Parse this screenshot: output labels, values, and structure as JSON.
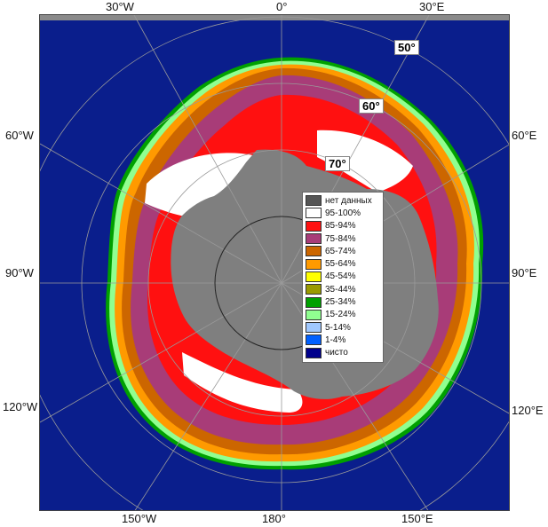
{
  "map": {
    "lon_labels": {
      "top_30w": "30°W",
      "top_0": "0°",
      "top_30e": "30°E",
      "left_60w": "60°W",
      "left_90w": "90°W",
      "left_120w": "120°W",
      "right_60e": "60°E",
      "right_90e": "90°E",
      "right_120e": "120°E",
      "bottom_150w": "150°W",
      "bottom_180": "180°",
      "bottom_150e": "150°E"
    },
    "lat_labels": {
      "lat50": "50°",
      "lat60": "60°",
      "lat70": "70°"
    },
    "colors": {
      "ocean": "#0a1e8c",
      "land": "#7f7f7f",
      "nodata": "#555555",
      "c95": "#ffffff",
      "c85": "#ff1010",
      "c75": "#a83c78",
      "c65": "#cc6600",
      "c55": "#ff9a00",
      "c45": "#ffff00",
      "c35": "#9a9a00",
      "c25": "#00a000",
      "c15": "#90ff90",
      "c5": "#a0c8ff",
      "c1": "#0060ff",
      "clear": "#00008c"
    }
  },
  "legend": [
    {
      "label": "нет данных",
      "color": "#555555"
    },
    {
      "label": "95-100%",
      "color": "#ffffff"
    },
    {
      "label": "85-94%",
      "color": "#ff1010"
    },
    {
      "label": "75-84%",
      "color": "#a83c78"
    },
    {
      "label": "65-74%",
      "color": "#cc6600"
    },
    {
      "label": "55-64%",
      "color": "#ff9a00"
    },
    {
      "label": "45-54%",
      "color": "#ffff00"
    },
    {
      "label": "35-44%",
      "color": "#9a9a00"
    },
    {
      "label": "25-34%",
      "color": "#00a000"
    },
    {
      "label": "15-24%",
      "color": "#90ff90"
    },
    {
      "label": "5-14%",
      "color": "#a0c8ff"
    },
    {
      "label": "1-4%",
      "color": "#0060ff"
    },
    {
      "label": "чисто",
      "color": "#00008c"
    }
  ]
}
